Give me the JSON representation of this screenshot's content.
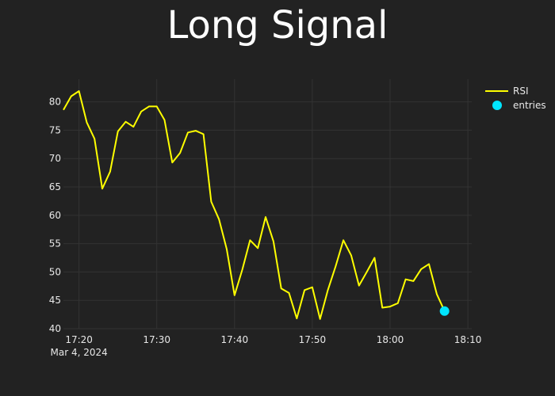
{
  "chart_data": {
    "type": "line",
    "title": "Long Signal",
    "xlabel": "",
    "ylabel": "",
    "x_start_label": "Mar 4, 2024",
    "x_ticks": [
      "17:20",
      "17:30",
      "17:40",
      "17:50",
      "18:00",
      "18:10"
    ],
    "y_ticks": [
      40,
      45,
      50,
      55,
      60,
      65,
      70,
      75,
      80
    ],
    "ylim": [
      40,
      84
    ],
    "grid": true,
    "legend_position": "top-right",
    "series": [
      {
        "name": "RSI",
        "kind": "line",
        "color": "#ffff00",
        "x": [
          "17:18",
          "17:19",
          "17:20",
          "17:21",
          "17:22",
          "17:23",
          "17:24",
          "17:25",
          "17:26",
          "17:27",
          "17:28",
          "17:29",
          "17:30",
          "17:31",
          "17:32",
          "17:33",
          "17:34",
          "17:35",
          "17:36",
          "17:37",
          "17:38",
          "17:39",
          "17:40",
          "17:41",
          "17:42",
          "17:43",
          "17:44",
          "17:45",
          "17:46",
          "17:47",
          "17:48",
          "17:49",
          "17:50",
          "17:51",
          "17:52",
          "17:53",
          "17:54",
          "17:55",
          "17:56",
          "17:57",
          "17:58",
          "17:59",
          "18:00",
          "18:01",
          "18:02",
          "18:03",
          "18:04",
          "18:05",
          "18:06",
          "18:07"
        ],
        "values": [
          78.6,
          81.0,
          81.9,
          76.4,
          73.5,
          64.7,
          67.7,
          74.8,
          76.5,
          75.6,
          78.3,
          79.2,
          79.2,
          76.8,
          69.3,
          71.0,
          74.6,
          74.9,
          74.3,
          62.4,
          59.3,
          54.0,
          45.9,
          50.4,
          55.6,
          54.2,
          59.7,
          55.4,
          47.1,
          46.3,
          41.8,
          46.8,
          47.3,
          41.7,
          46.8,
          51.0,
          55.6,
          52.9,
          47.6,
          50.0,
          52.5,
          43.7,
          43.9,
          44.5,
          48.7,
          48.4,
          50.5,
          51.4,
          46.1,
          43.1
        ]
      },
      {
        "name": "entries",
        "kind": "markers",
        "color": "#00e5ff",
        "x": [
          "18:07"
        ],
        "values": [
          43.1
        ]
      }
    ]
  }
}
